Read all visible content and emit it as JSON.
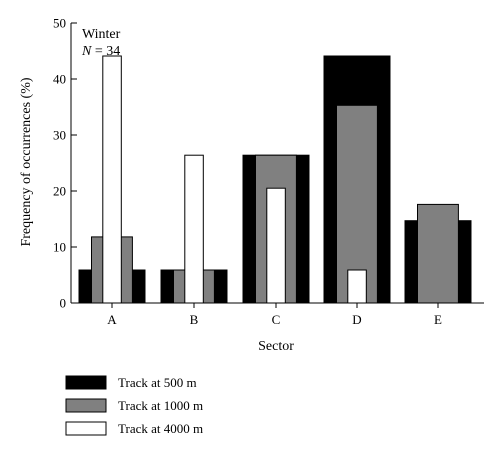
{
  "chart_data": {
    "type": "bar",
    "title": "",
    "annotation": {
      "line1": "Winter",
      "n_label": "N",
      "n_value": " = 34"
    },
    "xlabel": "Sector",
    "ylabel": "Frequency of occurrences (%)",
    "ylim": [
      0,
      50
    ],
    "yticks": [
      0,
      10,
      20,
      30,
      40,
      50
    ],
    "categories": [
      "A",
      "B",
      "C",
      "D",
      "E"
    ],
    "series": [
      {
        "name": "Track at 500 m",
        "color": "#000000",
        "values": [
          5.9,
          5.9,
          26.4,
          44.1,
          14.7
        ]
      },
      {
        "name": "Track at 1000 m",
        "color": "#808080",
        "values": [
          11.8,
          5.9,
          26.4,
          35.3,
          17.6
        ]
      },
      {
        "name": "Track at 4000 m",
        "color": "#ffffff",
        "values": [
          44.1,
          26.4,
          20.5,
          5.9,
          0
        ]
      }
    ],
    "legend_position": "bottom-left",
    "grid": false
  }
}
